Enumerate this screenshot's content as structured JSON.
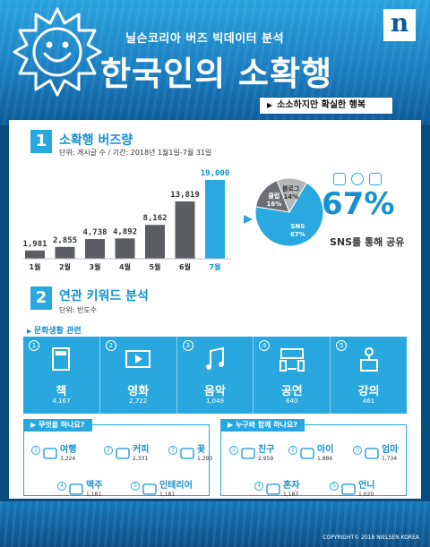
{
  "header": {
    "subtitle": "닐슨코리아 버즈 빅데이터 분석",
    "title": "한국인의 소확행",
    "tag": "소소하지만 확실한 행복",
    "logo": "n"
  },
  "section1": {
    "num": "1",
    "title": "소확행 버즈량",
    "unit": "단위: 게시글 수 / 기간: 2018년 1월1일-7월 31일",
    "sns_percent": "67%",
    "sns_caption": "SNS를 통해 공유"
  },
  "section2": {
    "num": "2",
    "title": "연관 키워드 분석",
    "unit": "단위: 빈도수",
    "culture_label": "문화생활 관련",
    "culture": [
      {
        "n": "1",
        "label": "책",
        "value": "4,167",
        "icon": "book-icon"
      },
      {
        "n": "2",
        "label": "영화",
        "value": "2,722",
        "icon": "film-icon"
      },
      {
        "n": "3",
        "label": "음악",
        "value": "1,049",
        "icon": "music-note-icon"
      },
      {
        "n": "4",
        "label": "공연",
        "value": "640",
        "icon": "stage-icon"
      },
      {
        "n": "5",
        "label": "강의",
        "value": "461",
        "icon": "lecture-icon"
      }
    ],
    "what_label": "무엇을 하나요?",
    "what": [
      {
        "n": "1",
        "label": "여행",
        "value": "3,224",
        "icon": "suitcase-icon"
      },
      {
        "n": "2",
        "label": "커피",
        "value": "2,331",
        "icon": "coffee-icon"
      },
      {
        "n": "3",
        "label": "꽃",
        "value": "1,293",
        "icon": "flower-icon"
      },
      {
        "n": "4",
        "label": "맥주",
        "value": "1,181",
        "icon": "beer-icon"
      },
      {
        "n": "5",
        "label": "인테리어",
        "value": "1,181",
        "icon": "interior-icon"
      }
    ],
    "who_label": "누구와 함께 하나요?",
    "who": [
      {
        "n": "1",
        "label": "친구",
        "value": "2,959",
        "icon": "friends-icon"
      },
      {
        "n": "2",
        "label": "아이",
        "value": "1,886",
        "icon": "child-icon"
      },
      {
        "n": "3",
        "label": "엄마",
        "value": "1,734",
        "icon": "mother-icon"
      },
      {
        "n": "4",
        "label": "혼자",
        "value": "1,187",
        "icon": "alone-icon"
      },
      {
        "n": "5",
        "label": "언니",
        "value": "1,020",
        "icon": "sister-icon"
      }
    ]
  },
  "footer": {
    "copyright": "COPYRIGHT© 2018 NIELSEN KOREA"
  },
  "colors": {
    "accent": "#29a8e0",
    "bar": "#5c5d63",
    "highlight": "#2aa8e0",
    "pie_dark": "#6e6f74",
    "pie_light": "#b5b6b9"
  },
  "chart_data": [
    {
      "type": "bar",
      "categories": [
        "1월",
        "2월",
        "3월",
        "4월",
        "5월",
        "6월",
        "7월"
      ],
      "values": [
        1981,
        2855,
        4738,
        4892,
        8162,
        13819,
        19000
      ],
      "value_labels": [
        "1,981",
        "2,855",
        "4,738",
        "4,892",
        "8,162",
        "13,819",
        "19,000"
      ],
      "highlight_index": 6,
      "ylim": [
        0,
        19000
      ]
    },
    {
      "type": "pie",
      "slices": [
        {
          "label": "SNS",
          "pct_label": "67%",
          "value": 67,
          "color": "#2aa8e0"
        },
        {
          "label": "클럽",
          "pct_label": "16%",
          "value": 16,
          "color": "#6e6f74"
        },
        {
          "label": "블로그",
          "pct_label": "14%",
          "value": 14,
          "color": "#b5b6b9"
        }
      ]
    }
  ]
}
